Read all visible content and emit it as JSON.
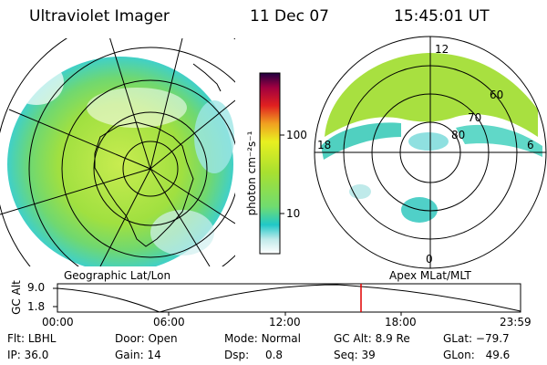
{
  "header": {
    "instrument": "Ultraviolet Imager",
    "date": "11 Dec 07",
    "time": "15:45:01 UT"
  },
  "left_panel": {
    "label": "Geographic Lat/Lon"
  },
  "right_panel": {
    "label": "Apex MLat/MLT",
    "mlt_labels": [
      "12",
      "18",
      "6",
      "0"
    ],
    "lat_labels": [
      "60",
      "70",
      "80"
    ]
  },
  "colorbar": {
    "unit_label": "photon cm⁻²s⁻¹",
    "tick_labels": [
      "100",
      "10"
    ],
    "scale": "log",
    "colors": [
      "#ffffff",
      "#8fe0e0",
      "#20c8c8",
      "#90e040",
      "#b8e020",
      "#f0f020",
      "#f0a020",
      "#e02020",
      "#a00020",
      "#200040"
    ]
  },
  "timeline": {
    "y_label": "GC Alt",
    "y_ticks": [
      "9.0",
      "1.8"
    ],
    "x_ticks": [
      "00:00",
      "06:00",
      "12:00",
      "18:00",
      "23:59"
    ],
    "marker_time": "15:45"
  },
  "info": {
    "filter_label": "Flt:",
    "filter_value": "LBHL",
    "ip_label": "IP:",
    "ip_value": "36.0",
    "door_label": "Door:",
    "door_value": "Open",
    "gain_label": "Gain:",
    "gain_value": "14",
    "mode_label": "Mode:",
    "mode_value": "Normal",
    "dsp_label": "Dsp:",
    "dsp_value": "0.8",
    "gcalt_label": "GC Alt:",
    "gcalt_value": "8.9 Re",
    "seq_label": "Seq:",
    "seq_value": "39",
    "glat_label": "GLat:",
    "glat_value": "−79.7",
    "glon_label": "GLon:",
    "glon_value": "49.6"
  }
}
